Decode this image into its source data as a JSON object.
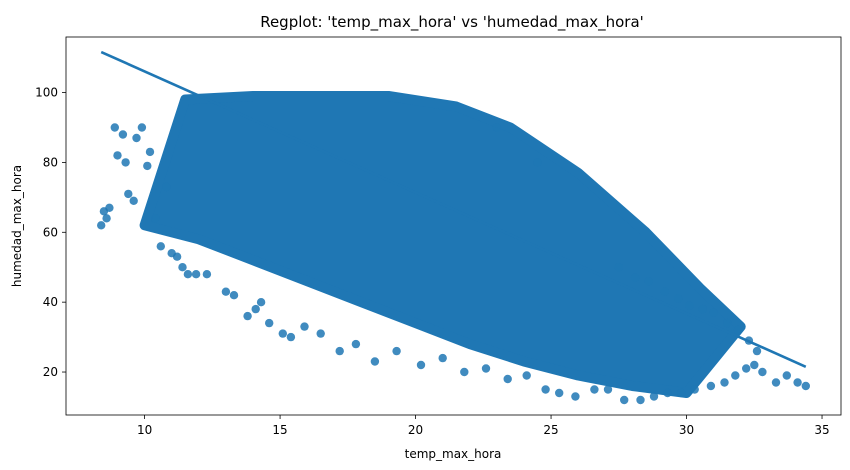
{
  "chart_data": {
    "type": "scatter",
    "title": "Regplot: 'temp_max_hora' vs 'humedad_max_hora'",
    "xlabel": "temp_max_hora",
    "ylabel": "humedad_max_hora",
    "xlim": [
      7.1,
      35.7
    ],
    "ylim": [
      7.7,
      115.9
    ],
    "xticks": [
      10,
      15,
      20,
      25,
      30,
      35
    ],
    "yticks": [
      20,
      40,
      60,
      80,
      100
    ],
    "grid": false,
    "colors": {
      "points": "#1f77b4",
      "line": "#1f77b4"
    },
    "regression_line": {
      "x": [
        8.4,
        34.4
      ],
      "y": [
        111.6,
        21.5
      ]
    },
    "point_cloud": {
      "description": "dense band",
      "upper_edge": [
        [
          11.5,
          98
        ],
        [
          14,
          99
        ],
        [
          17,
          99
        ],
        [
          19,
          99
        ],
        [
          21.5,
          96
        ],
        [
          23.5,
          90
        ],
        [
          26,
          77
        ],
        [
          28.5,
          60
        ],
        [
          30.5,
          44
        ],
        [
          32,
          33
        ]
      ],
      "lower_edge": [
        [
          10,
          62
        ],
        [
          12,
          58
        ],
        [
          14,
          52
        ],
        [
          16,
          46
        ],
        [
          18,
          40
        ],
        [
          20,
          34
        ],
        [
          22,
          28
        ],
        [
          24,
          23
        ],
        [
          26,
          19
        ],
        [
          28,
          16
        ],
        [
          30,
          14
        ]
      ]
    },
    "outliers": [
      [
        8.4,
        62
      ],
      [
        8.5,
        66
      ],
      [
        8.6,
        64
      ],
      [
        8.7,
        67
      ],
      [
        8.9,
        90
      ],
      [
        9.0,
        82
      ],
      [
        9.2,
        88
      ],
      [
        9.3,
        80
      ],
      [
        9.4,
        71
      ],
      [
        9.6,
        69
      ],
      [
        9.7,
        87
      ],
      [
        9.9,
        90
      ],
      [
        10.1,
        79
      ],
      [
        10.2,
        83
      ],
      [
        10.4,
        64
      ],
      [
        10.6,
        56
      ],
      [
        10.8,
        73
      ],
      [
        11.0,
        54
      ],
      [
        11.2,
        53
      ],
      [
        11.4,
        50
      ],
      [
        11.6,
        48
      ],
      [
        11.9,
        48
      ],
      [
        12.3,
        48
      ],
      [
        13.0,
        43
      ],
      [
        13.3,
        42
      ],
      [
        13.8,
        36
      ],
      [
        14.1,
        38
      ],
      [
        14.3,
        40
      ],
      [
        14.6,
        34
      ],
      [
        15.1,
        31
      ],
      [
        15.4,
        30
      ],
      [
        15.9,
        33
      ],
      [
        16.5,
        31
      ],
      [
        17.2,
        26
      ],
      [
        17.8,
        28
      ],
      [
        18.5,
        23
      ],
      [
        19.3,
        26
      ],
      [
        20.2,
        22
      ],
      [
        21.0,
        24
      ],
      [
        21.8,
        20
      ],
      [
        22.6,
        21
      ],
      [
        23.0,
        90
      ],
      [
        23.4,
        18
      ],
      [
        24.1,
        19
      ],
      [
        24.5,
        80
      ],
      [
        24.8,
        15
      ],
      [
        25.3,
        14
      ],
      [
        25.9,
        13
      ],
      [
        26.6,
        15
      ],
      [
        27.1,
        15
      ],
      [
        27.7,
        12
      ],
      [
        28.3,
        12
      ],
      [
        28.8,
        13
      ],
      [
        29.3,
        14
      ],
      [
        29.8,
        14
      ],
      [
        30.3,
        15
      ],
      [
        30.9,
        16
      ],
      [
        31.4,
        17
      ],
      [
        31.8,
        19
      ],
      [
        32.2,
        21
      ],
      [
        32.5,
        22
      ],
      [
        32.8,
        20
      ],
      [
        33.3,
        17
      ],
      [
        33.7,
        19
      ],
      [
        34.1,
        17
      ],
      [
        34.4,
        16
      ],
      [
        27.5,
        50
      ],
      [
        28.1,
        47
      ],
      [
        28.6,
        46
      ],
      [
        29.2,
        43
      ],
      [
        29.7,
        41
      ],
      [
        30.1,
        39
      ],
      [
        30.6,
        38
      ],
      [
        31.0,
        37
      ],
      [
        31.5,
        34
      ],
      [
        31.9,
        32
      ],
      [
        32.3,
        29
      ],
      [
        32.6,
        26
      ]
    ]
  }
}
